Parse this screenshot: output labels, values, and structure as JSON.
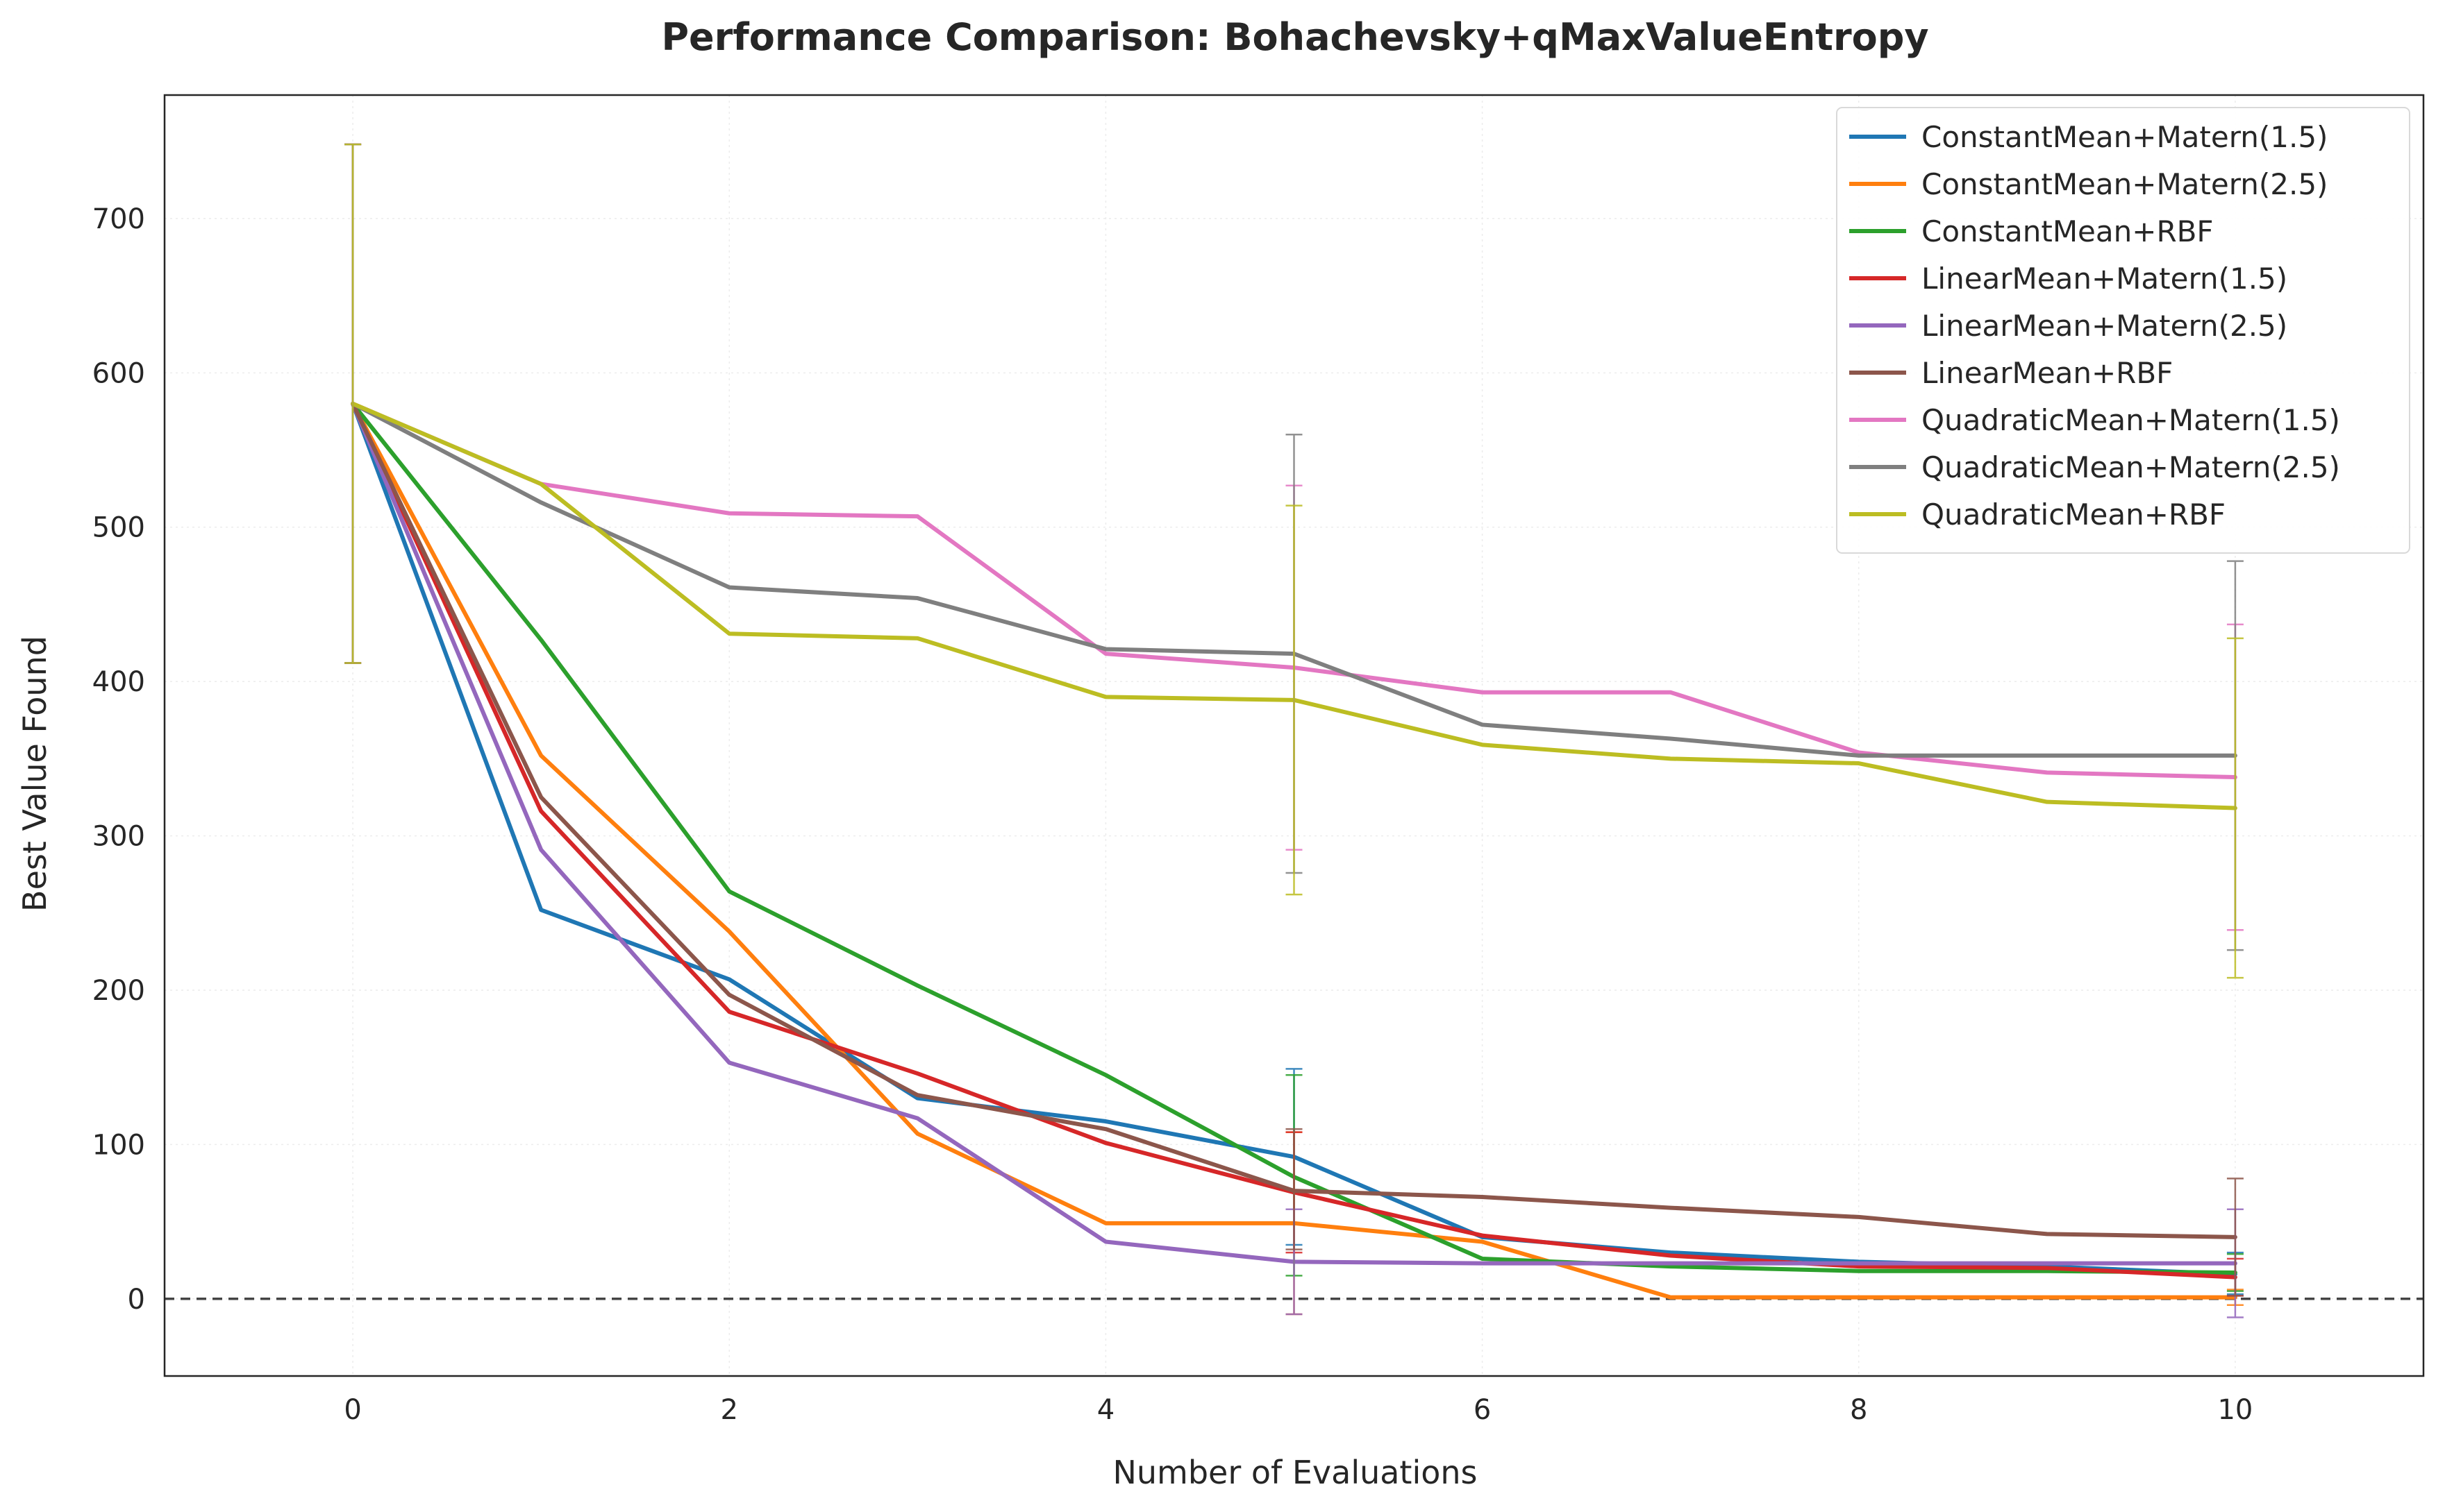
{
  "chart_data": {
    "type": "line",
    "title": "Performance Comparison: Bohachevsky+qMaxValueEntropy",
    "xlabel": "Number of Evaluations",
    "ylabel": "Best Value Found",
    "xlim": [
      -1,
      11
    ],
    "ylim": [
      -50,
      780
    ],
    "xticks": [
      0,
      2,
      4,
      6,
      8,
      10
    ],
    "yticks": [
      0,
      100,
      200,
      300,
      400,
      500,
      600,
      700
    ],
    "grid": true,
    "legend_position": "top-right",
    "reference_line": {
      "y": 0,
      "style": "dashed",
      "color": "#444444"
    },
    "x": [
      0,
      1,
      2,
      3,
      4,
      5,
      6,
      7,
      8,
      9,
      10
    ],
    "series": [
      {
        "name": "ConstantMean+Matern(1.5)",
        "color": "#1f77b4",
        "values": [
          580,
          252,
          207,
          130,
          115,
          92,
          40,
          30,
          24,
          21,
          16
        ],
        "error_bars": [
          {
            "x": 0,
            "low": 412,
            "high": 748
          },
          {
            "x": 5,
            "low": 35,
            "high": 149
          },
          {
            "x": 10,
            "low": 3,
            "high": 30
          }
        ]
      },
      {
        "name": "ConstantMean+Matern(2.5)",
        "color": "#ff7f0e",
        "values": [
          580,
          352,
          238,
          107,
          49,
          49,
          37,
          1,
          1,
          1,
          1
        ],
        "error_bars": [
          {
            "x": 0,
            "low": 412,
            "high": 748
          },
          {
            "x": 5,
            "low": -10,
            "high": 108
          },
          {
            "x": 10,
            "low": -4,
            "high": 6
          }
        ]
      },
      {
        "name": "ConstantMean+RBF",
        "color": "#2ca02c",
        "values": [
          580,
          427,
          264,
          203,
          145,
          79,
          26,
          21,
          18,
          18,
          17
        ],
        "error_bars": [
          {
            "x": 0,
            "low": 412,
            "high": 748
          },
          {
            "x": 5,
            "low": 15,
            "high": 145
          },
          {
            "x": 10,
            "low": 5,
            "high": 29
          }
        ]
      },
      {
        "name": "LinearMean+Matern(1.5)",
        "color": "#d62728",
        "values": [
          580,
          316,
          186,
          146,
          101,
          69,
          41,
          28,
          21,
          20,
          14
        ],
        "error_bars": [
          {
            "x": 0,
            "low": 412,
            "high": 748
          },
          {
            "x": 5,
            "low": 30,
            "high": 108
          },
          {
            "x": 10,
            "low": 2,
            "high": 26
          }
        ]
      },
      {
        "name": "LinearMean+Matern(2.5)",
        "color": "#9467bd",
        "values": [
          580,
          291,
          153,
          117,
          37,
          24,
          23,
          23,
          23,
          23,
          23
        ],
        "error_bars": [
          {
            "x": 0,
            "low": 412,
            "high": 748
          },
          {
            "x": 5,
            "low": -10,
            "high": 58
          },
          {
            "x": 10,
            "low": -12,
            "high": 58
          }
        ]
      },
      {
        "name": "LinearMean+RBF",
        "color": "#8c564b",
        "values": [
          580,
          325,
          197,
          132,
          110,
          70,
          66,
          59,
          53,
          42,
          40
        ],
        "error_bars": [
          {
            "x": 0,
            "low": 412,
            "high": 748
          },
          {
            "x": 5,
            "low": 32,
            "high": 110
          },
          {
            "x": 10,
            "low": 2,
            "high": 78
          }
        ]
      },
      {
        "name": "QuadraticMean+Matern(1.5)",
        "color": "#e377c2",
        "values": [
          580,
          528,
          509,
          507,
          418,
          409,
          393,
          393,
          354,
          341,
          338
        ],
        "error_bars": [
          {
            "x": 0,
            "low": 412,
            "high": 748
          },
          {
            "x": 5,
            "low": 291,
            "high": 527
          },
          {
            "x": 10,
            "low": 239,
            "high": 437
          }
        ]
      },
      {
        "name": "QuadraticMean+Matern(2.5)",
        "color": "#7f7f7f",
        "values": [
          580,
          516,
          461,
          454,
          421,
          418,
          372,
          363,
          352,
          352,
          352
        ],
        "error_bars": [
          {
            "x": 0,
            "low": 412,
            "high": 748
          },
          {
            "x": 5,
            "low": 276,
            "high": 560
          },
          {
            "x": 10,
            "low": 226,
            "high": 478
          }
        ]
      },
      {
        "name": "QuadraticMean+RBF",
        "color": "#bcbd22",
        "values": [
          580,
          528,
          431,
          428,
          390,
          388,
          359,
          350,
          347,
          322,
          318
        ],
        "error_bars": [
          {
            "x": 0,
            "low": 412,
            "high": 748
          },
          {
            "x": 5,
            "low": 262,
            "high": 514
          },
          {
            "x": 10,
            "low": 208,
            "high": 428
          }
        ]
      }
    ]
  }
}
